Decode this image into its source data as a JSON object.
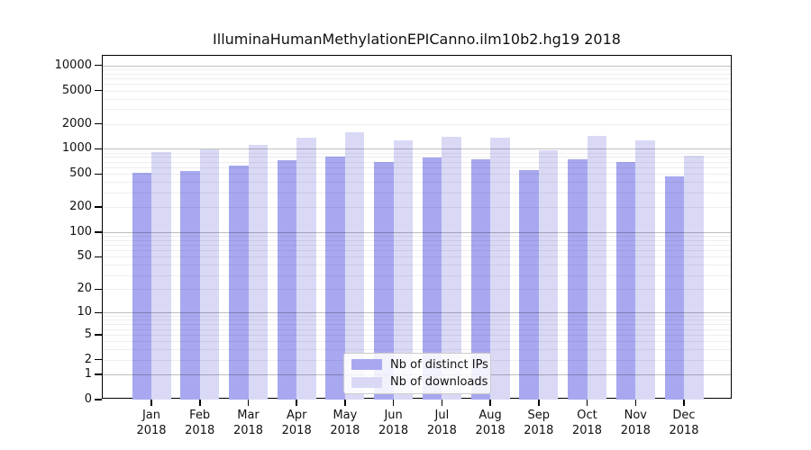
{
  "title": "IlluminaHumanMethylationEPICanno.ilm10b2.hg19 2018",
  "colors": {
    "ips_bar": "#a8a8f0",
    "downloads_bar": "#d9d9f6",
    "grid_major": "rgba(0,0,0,0.25)",
    "grid_minor": "rgba(0,0,0,0.065)",
    "axis": "#000000"
  },
  "legend": {
    "items": [
      {
        "label": "Nb of distinct IPs",
        "color_key": "ips_bar"
      },
      {
        "label": "Nb of downloads",
        "color_key": "downloads_bar"
      }
    ]
  },
  "chart_data": {
    "type": "bar",
    "scale": "log1p",
    "title": "IlluminaHumanMethylationEPICanno.ilm10b2.hg19 2018",
    "xlabel": "",
    "ylabel": "",
    "categories": [
      "Jan",
      "Feb",
      "Mar",
      "Apr",
      "May",
      "Jun",
      "Jul",
      "Aug",
      "Sep",
      "Oct",
      "Nov",
      "Dec"
    ],
    "category_year": "2018",
    "series": [
      {
        "name": "Nb of distinct IPs",
        "values": [
          520,
          550,
          635,
          725,
          815,
          700,
          780,
          745,
          555,
          760,
          700,
          470
        ]
      },
      {
        "name": "Nb of downloads",
        "values": [
          920,
          980,
          1120,
          1360,
          1600,
          1280,
          1400,
          1360,
          970,
          1430,
          830,
          830
        ]
      }
    ],
    "series_fix_note": "",
    "yticks": [
      0,
      1,
      2,
      5,
      10,
      20,
      50,
      100,
      200,
      500,
      1000,
      2000,
      5000,
      10000
    ],
    "ylim": [
      0,
      13000
    ],
    "grid": "horizontal, minor lines at 2-9 of each decade, major lines at powers of 10",
    "legend_position": "lower center inside plot"
  }
}
